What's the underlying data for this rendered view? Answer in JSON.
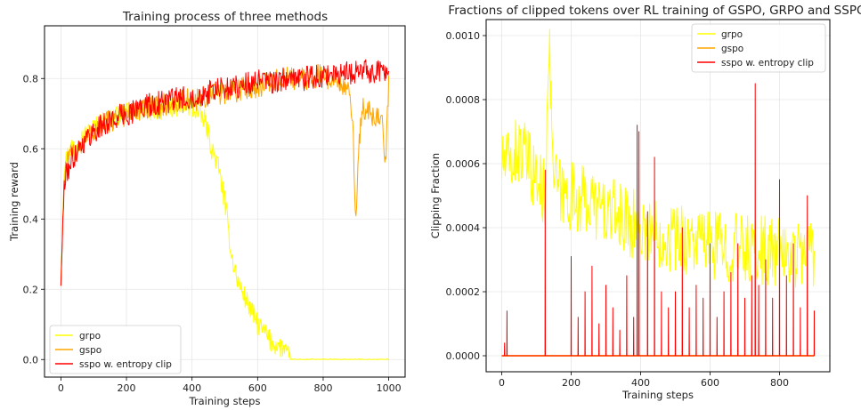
{
  "chart_data": [
    {
      "type": "line",
      "title": "Training process of three methods",
      "xlabel": "Training steps",
      "ylabel": "Training reward",
      "xlim": [
        -50,
        1050
      ],
      "ylim": [
        -0.05,
        0.95
      ],
      "xticks": [
        0,
        200,
        400,
        600,
        800,
        1000
      ],
      "xtick_labels": [
        "0",
        "200",
        "400",
        "600",
        "800",
        "1000"
      ],
      "yticks": [
        0.0,
        0.2,
        0.4,
        0.6,
        0.8
      ],
      "ytick_labels": [
        "0.0",
        "0.2",
        "0.4",
        "0.6",
        "0.8"
      ],
      "grid": true,
      "legend": "lower-left",
      "series": [
        {
          "name": "grpo",
          "color": "#FFFF00",
          "x": [
            0,
            10,
            25,
            50,
            100,
            150,
            200,
            250,
            300,
            350,
            400,
            420,
            440,
            460,
            480,
            500,
            520,
            540,
            560,
            580,
            600,
            620,
            640,
            660,
            680,
            700,
            800,
            900,
            1000
          ],
          "y": [
            0.21,
            0.55,
            0.6,
            0.62,
            0.66,
            0.69,
            0.7,
            0.71,
            0.71,
            0.72,
            0.72,
            0.7,
            0.68,
            0.6,
            0.55,
            0.45,
            0.3,
            0.22,
            0.18,
            0.14,
            0.1,
            0.08,
            0.05,
            0.04,
            0.03,
            0.0,
            0.0,
            0.0,
            0.0
          ]
        },
        {
          "name": "gspo",
          "color": "#FFA500",
          "x": [
            0,
            10,
            25,
            50,
            100,
            150,
            200,
            250,
            300,
            350,
            400,
            450,
            500,
            550,
            600,
            650,
            700,
            750,
            800,
            850,
            880,
            890,
            900,
            910,
            920,
            940,
            960,
            980,
            990,
            1000
          ],
          "y": [
            0.21,
            0.52,
            0.57,
            0.6,
            0.65,
            0.68,
            0.7,
            0.71,
            0.72,
            0.73,
            0.74,
            0.75,
            0.76,
            0.77,
            0.78,
            0.79,
            0.8,
            0.8,
            0.81,
            0.79,
            0.75,
            0.68,
            0.4,
            0.62,
            0.72,
            0.7,
            0.68,
            0.72,
            0.55,
            0.78
          ]
        },
        {
          "name": "sspo w. entropy clip",
          "color": "#FF0000",
          "x": [
            0,
            10,
            25,
            50,
            100,
            150,
            200,
            250,
            300,
            350,
            400,
            450,
            500,
            550,
            600,
            650,
            700,
            750,
            800,
            850,
            900,
            950,
            1000
          ],
          "y": [
            0.21,
            0.5,
            0.55,
            0.6,
            0.65,
            0.68,
            0.7,
            0.72,
            0.73,
            0.74,
            0.75,
            0.76,
            0.77,
            0.78,
            0.79,
            0.79,
            0.8,
            0.8,
            0.81,
            0.81,
            0.82,
            0.82,
            0.82
          ]
        }
      ]
    },
    {
      "type": "line",
      "title": "Fractions of clipped tokens over RL training of GSPO, GRPO and SSPO",
      "xlabel": "Training steps",
      "ylabel": "Clipping Fraction",
      "xlim": [
        -45,
        945
      ],
      "ylim": [
        -5e-05,
        0.00105
      ],
      "xticks": [
        0,
        200,
        400,
        600,
        800
      ],
      "xtick_labels": [
        "0",
        "200",
        "400",
        "600",
        "800"
      ],
      "yticks": [
        0.0,
        0.0002,
        0.0004,
        0.0006,
        0.0008,
        0.001
      ],
      "ytick_labels": [
        "0.0000",
        "0.0002",
        "0.0004",
        "0.0006",
        "0.0008",
        "0.0010"
      ],
      "grid": true,
      "legend": "top-right",
      "series": [
        {
          "name": "grpo",
          "color": "#FFFF00",
          "x": [
            0,
            25,
            50,
            75,
            100,
            125,
            135,
            150,
            175,
            200,
            250,
            300,
            350,
            400,
            450,
            500,
            550,
            600,
            650,
            700,
            750,
            800,
            850,
            880,
            900
          ],
          "y": [
            0.0006,
            0.0006,
            0.00065,
            0.0006,
            0.00055,
            0.0005,
            0.001,
            0.00055,
            0.0005,
            0.0005,
            0.00048,
            0.00045,
            0.00043,
            0.0004,
            0.00038,
            0.00037,
            0.00036,
            0.00035,
            0.00034,
            0.00033,
            0.00033,
            0.00032,
            0.00032,
            0.00035,
            0.0003
          ]
        },
        {
          "name": "gspo",
          "color": "#FFA500",
          "x": [
            0,
            900
          ],
          "y": [
            0.0,
            0.0
          ]
        },
        {
          "name": "sspo w. entropy clip",
          "color": "#FF0000",
          "x": [
            0,
            8,
            15,
            110,
            125,
            200,
            220,
            240,
            260,
            280,
            300,
            320,
            340,
            360,
            380,
            390,
            395,
            420,
            440,
            460,
            480,
            500,
            520,
            540,
            560,
            580,
            600,
            620,
            640,
            660,
            680,
            700,
            720,
            730,
            740,
            760,
            780,
            800,
            820,
            840,
            860,
            880,
            900
          ],
          "y": [
            0.0,
            4e-05,
            0.00014,
            0.0,
            0.00058,
            0.00031,
            0.00012,
            0.0002,
            0.00028,
            0.0001,
            0.00022,
            0.00015,
            8e-05,
            0.00025,
            0.00012,
            0.00072,
            0.0007,
            0.00045,
            0.00062,
            0.0002,
            0.00015,
            0.0002,
            0.0004,
            0.00015,
            0.00022,
            0.00018,
            0.00035,
            0.00012,
            0.0002,
            0.00026,
            0.00035,
            0.00018,
            0.00025,
            0.00085,
            0.00022,
            0.0003,
            0.00018,
            0.00055,
            0.00025,
            0.00035,
            0.00015,
            0.0005,
            0.00014
          ]
        }
      ]
    }
  ]
}
